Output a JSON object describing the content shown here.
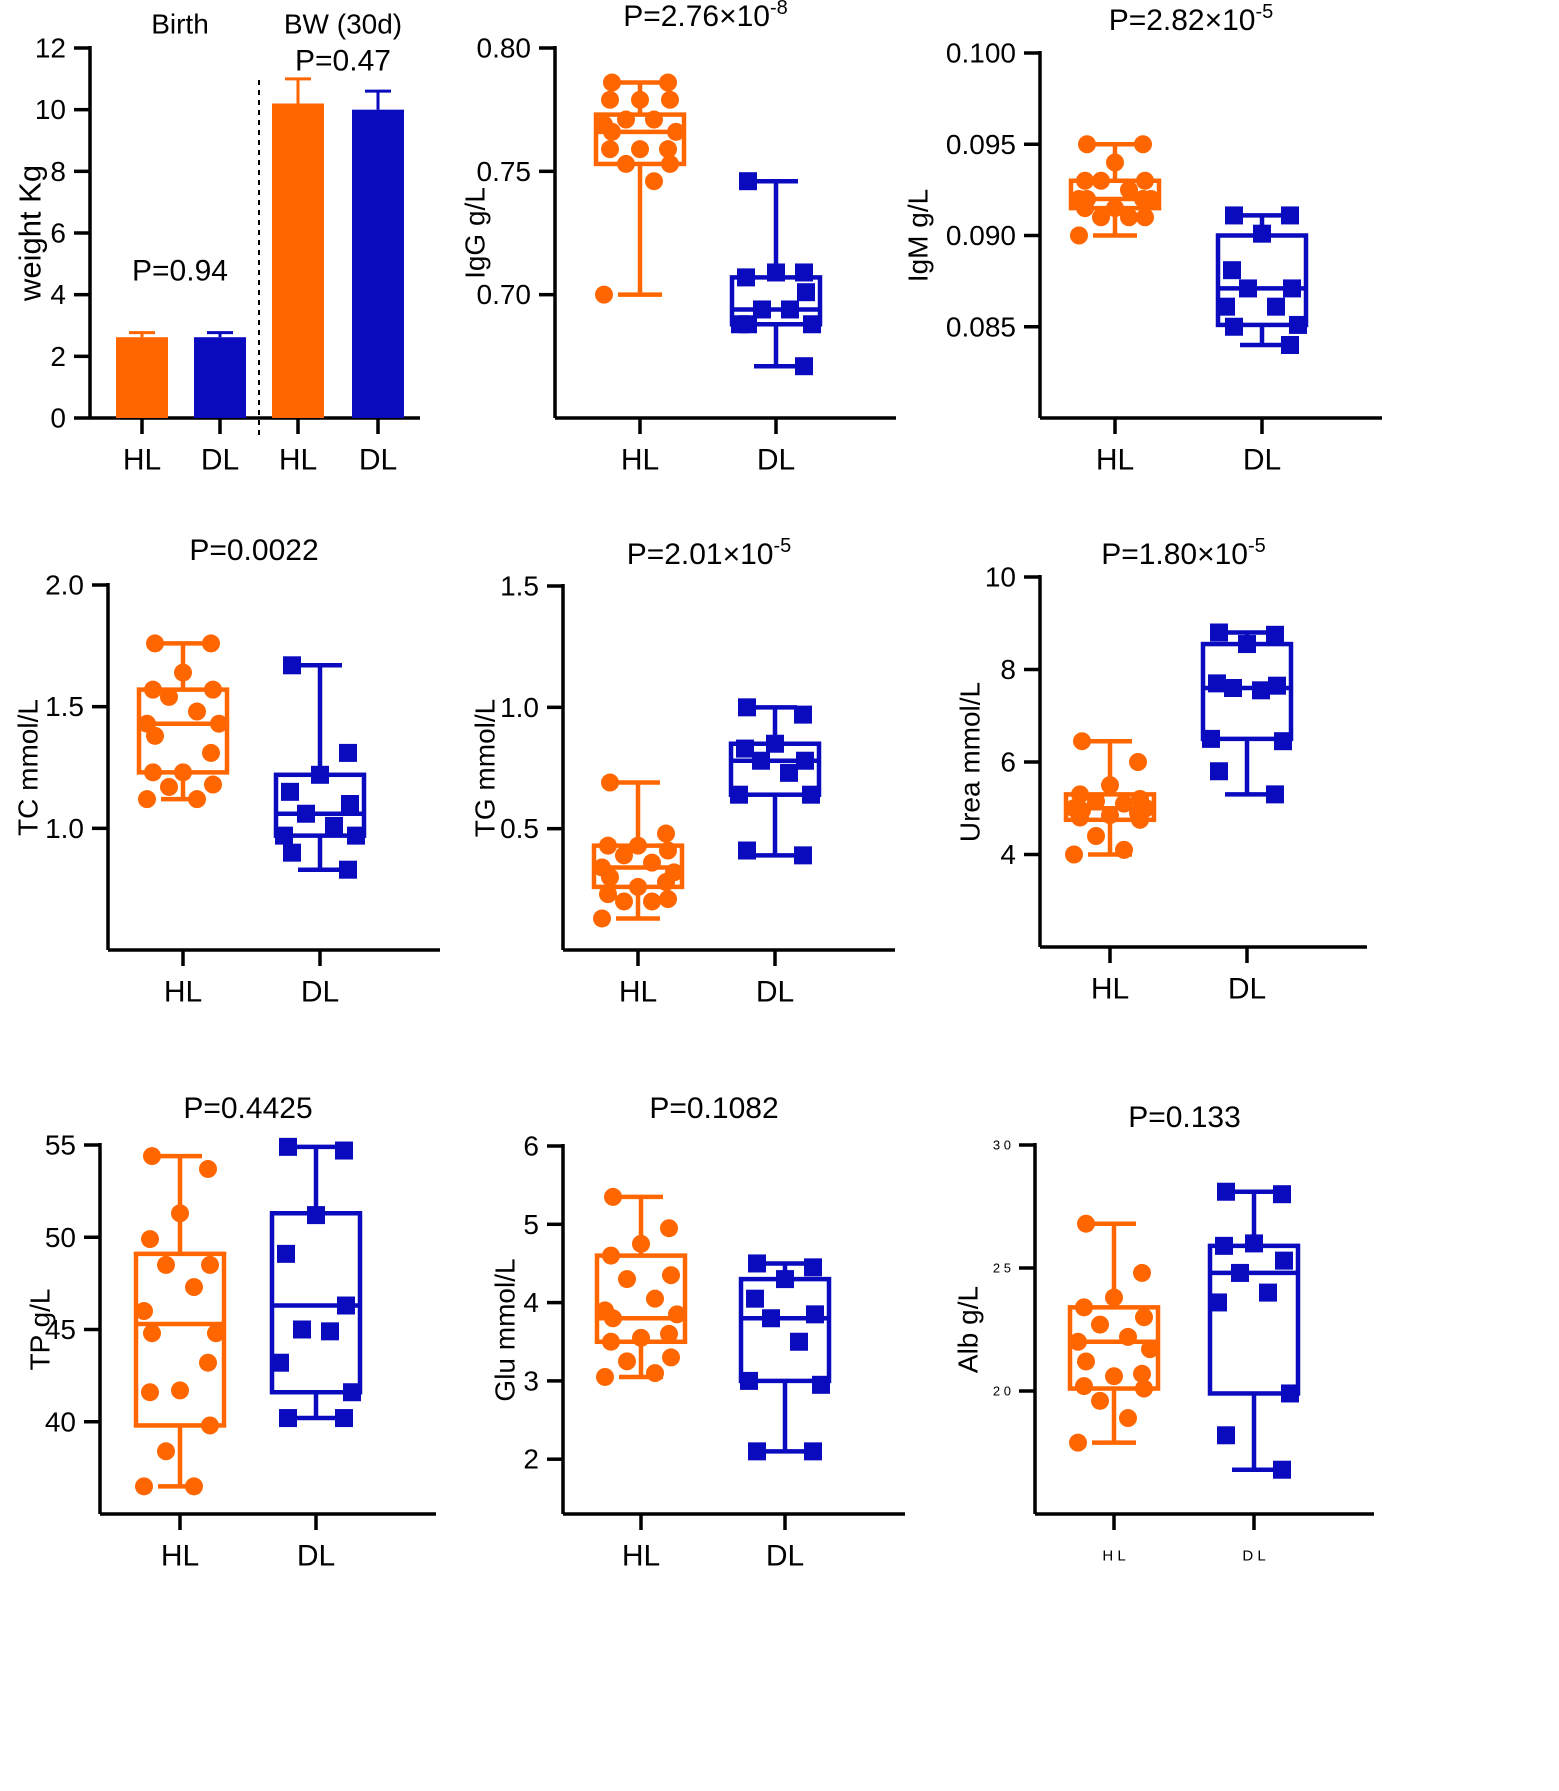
{
  "colors": {
    "hl": "#FF6600",
    "dl": "#0A0ABE",
    "axis": "#000000"
  },
  "chart_data": [
    {
      "type": "bar",
      "title": "",
      "section_labels": [
        "Birth",
        "BW (30d)"
      ],
      "annotations": [
        "P=0.94",
        "P=0.47"
      ],
      "ylabel": "weight  Kg",
      "xlabel": "",
      "categories": [
        "HL",
        "DL",
        "HL",
        "DL"
      ],
      "groups": [
        "HL",
        "DL",
        "HL",
        "DL"
      ],
      "values": [
        2.62,
        2.62,
        10.2,
        10.0
      ],
      "errors": [
        0.15,
        0.15,
        0.8,
        0.6
      ],
      "ylim": [
        0,
        12
      ],
      "yticks": [
        0,
        2,
        4,
        6,
        8,
        10,
        12
      ],
      "ytick_labels": [
        "0",
        "2",
        "4",
        "6",
        "8",
        "10",
        "12"
      ]
    },
    {
      "type": "box",
      "title": "P=2.76×10",
      "title_exp": "-8",
      "ylabel": "IgG g/L",
      "categories": [
        "HL",
        "DL"
      ],
      "ylim": [
        0.65,
        0.8
      ],
      "yticks": [
        0.7,
        0.75,
        0.8
      ],
      "ytick_labels": [
        "0.70",
        "0.75",
        "0.80"
      ],
      "series": [
        {
          "name": "HL",
          "whisker_low": 0.7,
          "q1": 0.753,
          "median": 0.766,
          "q3": 0.773,
          "whisker_high": 0.786,
          "points": [
            0.786,
            0.786,
            0.779,
            0.779,
            0.779,
            0.771,
            0.771,
            0.769,
            0.766,
            0.766,
            0.759,
            0.759,
            0.759,
            0.753,
            0.753,
            0.746,
            0.7
          ]
        },
        {
          "name": "DL",
          "whisker_low": 0.671,
          "q1": 0.688,
          "median": 0.694,
          "q3": 0.707,
          "whisker_high": 0.746,
          "points": [
            0.746,
            0.709,
            0.709,
            0.707,
            0.701,
            0.694,
            0.694,
            0.688,
            0.688,
            0.688,
            0.671
          ]
        }
      ]
    },
    {
      "type": "box",
      "title": "P=2.82×10",
      "title_exp": "-5",
      "ylabel": "IgM g/L",
      "categories": [
        "HL",
        "DL"
      ],
      "ylim": [
        0.08,
        0.1
      ],
      "yticks": [
        0.085,
        0.09,
        0.095,
        0.1
      ],
      "ytick_labels": [
        "0.085",
        "0.090",
        "0.095",
        "0.100"
      ],
      "series": [
        {
          "name": "HL",
          "whisker_low": 0.09,
          "q1": 0.0915,
          "median": 0.092,
          "q3": 0.093,
          "whisker_high": 0.095,
          "points": [
            0.095,
            0.095,
            0.094,
            0.093,
            0.093,
            0.093,
            0.0925,
            0.092,
            0.092,
            0.092,
            0.092,
            0.0915,
            0.0915,
            0.091,
            0.091,
            0.091,
            0.09
          ]
        },
        {
          "name": "DL",
          "whisker_low": 0.084,
          "q1": 0.0851,
          "median": 0.0871,
          "q3": 0.09,
          "whisker_high": 0.0911,
          "points": [
            0.0911,
            0.0911,
            0.0901,
            0.0881,
            0.0871,
            0.0871,
            0.0861,
            0.0861,
            0.0851,
            0.085,
            0.084
          ]
        }
      ]
    },
    {
      "type": "box",
      "title": "P=0.0022",
      "title_exp": "",
      "ylabel": "TC mmol/L",
      "categories": [
        "HL",
        "DL"
      ],
      "ylim": [
        0.5,
        2.0
      ],
      "yticks": [
        1.0,
        1.5,
        2.0
      ],
      "ytick_labels": [
        "1.0",
        "1.5",
        "2.0"
      ],
      "series": [
        {
          "name": "HL",
          "whisker_low": 1.12,
          "q1": 1.23,
          "median": 1.43,
          "q3": 1.57,
          "whisker_high": 1.76,
          "points": [
            1.76,
            1.76,
            1.64,
            1.57,
            1.57,
            1.54,
            1.48,
            1.43,
            1.43,
            1.38,
            1.31,
            1.23,
            1.23,
            1.18,
            1.17,
            1.12,
            1.12
          ]
        },
        {
          "name": "DL",
          "whisker_low": 0.83,
          "q1": 0.97,
          "median": 1.06,
          "q3": 1.22,
          "whisker_high": 1.67,
          "points": [
            1.67,
            1.31,
            1.22,
            1.15,
            1.1,
            1.06,
            1.01,
            0.97,
            0.97,
            0.9,
            0.83
          ]
        }
      ]
    },
    {
      "type": "box",
      "title": "P=2.01×10",
      "title_exp": "-5",
      "ylabel": "TG mmol/L",
      "categories": [
        "HL",
        "DL"
      ],
      "ylim": [
        0.0,
        1.5
      ],
      "yticks": [
        0.5,
        1.0,
        1.5
      ],
      "ytick_labels": [
        "0.5",
        "1.0",
        "1.5"
      ],
      "series": [
        {
          "name": "HL",
          "whisker_low": 0.13,
          "q1": 0.26,
          "median": 0.34,
          "q3": 0.43,
          "whisker_high": 0.69,
          "points": [
            0.69,
            0.48,
            0.43,
            0.43,
            0.41,
            0.39,
            0.36,
            0.34,
            0.32,
            0.3,
            0.28,
            0.26,
            0.23,
            0.21,
            0.2,
            0.2,
            0.13
          ]
        },
        {
          "name": "DL",
          "whisker_low": 0.39,
          "q1": 0.64,
          "median": 0.78,
          "q3": 0.85,
          "whisker_high": 1.0,
          "points": [
            1.0,
            0.97,
            0.85,
            0.83,
            0.78,
            0.78,
            0.73,
            0.64,
            0.64,
            0.41,
            0.39
          ]
        }
      ]
    },
    {
      "type": "box",
      "title": "P=1.80×10",
      "title_exp": "-5",
      "ylabel": "Urea mmol/L",
      "categories": [
        "HL",
        "DL"
      ],
      "ylim": [
        2,
        10
      ],
      "yticks": [
        4,
        6,
        8,
        10
      ],
      "ytick_labels": [
        "4",
        "6",
        "8",
        "10"
      ],
      "series": [
        {
          "name": "HL",
          "whisker_low": 4.0,
          "q1": 4.75,
          "median": 5.0,
          "q3": 5.3,
          "whisker_high": 6.45,
          "points": [
            6.45,
            6.0,
            5.5,
            5.3,
            5.2,
            5.15,
            5.1,
            5.0,
            5.0,
            4.95,
            4.9,
            4.85,
            4.8,
            4.75,
            4.4,
            4.1,
            4.0
          ]
        },
        {
          "name": "DL",
          "whisker_low": 5.3,
          "q1": 6.5,
          "median": 7.6,
          "q3": 8.55,
          "whisker_high": 8.8,
          "points": [
            8.8,
            8.75,
            8.55,
            7.7,
            7.65,
            7.6,
            7.55,
            6.5,
            6.45,
            5.8,
            5.3
          ]
        }
      ]
    },
    {
      "type": "box",
      "title": "P=0.4425",
      "title_exp": "",
      "ylabel": "TP g/L",
      "categories": [
        "HL",
        "DL"
      ],
      "ylim": [
        35,
        55
      ],
      "yticks": [
        40,
        45,
        50,
        55
      ],
      "ytick_labels": [
        "40",
        "45",
        "50",
        "55"
      ],
      "series": [
        {
          "name": "HL",
          "whisker_low": 36.5,
          "q1": 39.8,
          "median": 45.3,
          "q3": 49.1,
          "whisker_high": 54.4,
          "points": [
            54.4,
            53.7,
            51.3,
            49.9,
            48.5,
            48.5,
            47.3,
            46.0,
            44.8,
            44.8,
            43.2,
            41.7,
            41.6,
            39.8,
            38.4,
            36.5,
            36.5
          ]
        },
        {
          "name": "DL",
          "whisker_low": 40.2,
          "q1": 41.6,
          "median": 46.3,
          "q3": 51.3,
          "whisker_high": 54.9,
          "points": [
            54.9,
            54.7,
            51.2,
            49.1,
            46.3,
            45.0,
            44.9,
            43.2,
            41.6,
            40.2,
            40.2
          ]
        }
      ]
    },
    {
      "type": "box",
      "title": "P=0.1082",
      "title_exp": "",
      "ylabel": "Glu mmol/L",
      "categories": [
        "HL",
        "DL"
      ],
      "ylim": [
        1.3,
        6.0
      ],
      "yticks": [
        2,
        3,
        4,
        5,
        6
      ],
      "ytick_labels": [
        "2",
        "3",
        "4",
        "5",
        "6"
      ],
      "series": [
        {
          "name": "HL",
          "whisker_low": 3.05,
          "q1": 3.5,
          "median": 3.8,
          "q3": 4.6,
          "whisker_high": 5.35,
          "points": [
            5.35,
            4.95,
            4.75,
            4.6,
            4.35,
            4.3,
            4.05,
            3.9,
            3.85,
            3.8,
            3.6,
            3.55,
            3.5,
            3.3,
            3.25,
            3.1,
            3.05
          ]
        },
        {
          "name": "DL",
          "whisker_low": 2.1,
          "q1": 3.0,
          "median": 3.8,
          "q3": 4.3,
          "whisker_high": 4.5,
          "points": [
            4.5,
            4.45,
            4.3,
            4.05,
            3.85,
            3.8,
            3.5,
            3.0,
            2.95,
            2.1,
            2.1
          ]
        }
      ]
    },
    {
      "type": "box",
      "title": "P=0.133",
      "title_exp": "",
      "ylabel": "Alb g/L",
      "categories": [
        "H L",
        "D L"
      ],
      "ylim": [
        15,
        30
      ],
      "yticks": [
        20,
        25,
        30
      ],
      "ytick_labels": [
        "2 0",
        "2 5",
        "3 0"
      ],
      "series": [
        {
          "name": "HL",
          "whisker_low": 17.9,
          "q1": 20.1,
          "median": 22.0,
          "q3": 23.4,
          "whisker_high": 26.8,
          "points": [
            26.8,
            24.8,
            23.8,
            23.4,
            23.0,
            22.7,
            22.2,
            22.0,
            21.7,
            21.2,
            20.7,
            20.6,
            20.2,
            20.1,
            19.6,
            18.9,
            17.9
          ]
        },
        {
          "name": "DL",
          "whisker_low": 16.8,
          "q1": 19.9,
          "median": 24.8,
          "q3": 25.9,
          "whisker_high": 28.1,
          "points": [
            28.1,
            28.0,
            26.0,
            25.9,
            25.3,
            24.8,
            24.0,
            23.6,
            19.9,
            18.2,
            16.8
          ]
        }
      ]
    }
  ]
}
